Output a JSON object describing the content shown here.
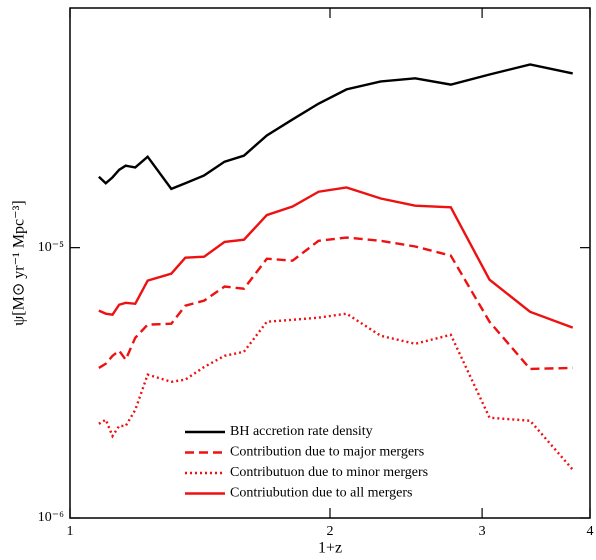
{
  "chart_data": {
    "type": "line",
    "xlabel": "1+z",
    "ylabel": "ψ[M⊙ yr⁻¹ Mpc⁻³]",
    "x": [
      1.08,
      1.1,
      1.12,
      1.14,
      1.16,
      1.19,
      1.23,
      1.31,
      1.36,
      1.43,
      1.51,
      1.59,
      1.69,
      1.81,
      1.94,
      2.09,
      2.29,
      2.51,
      2.76,
      3.06,
      3.41,
      3.82
    ],
    "series": [
      {
        "name": "BH accretion rate density",
        "color": "#000000",
        "dash": "solid",
        "values": [
          1.83e-05,
          1.73e-05,
          1.82e-05,
          1.94e-05,
          2.01e-05,
          1.98e-05,
          2.17e-05,
          1.65e-05,
          1.73e-05,
          1.85e-05,
          2.08e-05,
          2.19e-05,
          2.6e-05,
          2.98e-05,
          3.41e-05,
          3.85e-05,
          4.12e-05,
          4.23e-05,
          4.01e-05,
          4.37e-05,
          4.76e-05,
          4.41e-05
        ]
      },
      {
        "name": "Contribution due to major mergers",
        "color": "#ee1111",
        "dash": "dashed",
        "values": [
          3.59e-06,
          3.72e-06,
          3.98e-06,
          4.16e-06,
          3.85e-06,
          4.64e-06,
          5.19e-06,
          5.23e-06,
          6.1e-06,
          6.37e-06,
          7.18e-06,
          7.05e-06,
          9.1e-06,
          8.95e-06,
          1.06e-05,
          1.09e-05,
          1.06e-05,
          1.01e-05,
          9.34e-06,
          5.32e-06,
          3.56e-06,
          3.59e-06
        ]
      },
      {
        "name": "Contributuon due to minor mergers",
        "color": "#ee1111",
        "dash": "dotted",
        "values": [
          2.23e-06,
          2.31e-06,
          2.01e-06,
          2.19e-06,
          2.19e-06,
          2.51e-06,
          3.39e-06,
          3.19e-06,
          3.25e-06,
          3.62e-06,
          3.98e-06,
          4.12e-06,
          5.32e-06,
          5.41e-06,
          5.51e-06,
          5.7e-06,
          4.72e-06,
          4.41e-06,
          4.76e-06,
          2.35e-06,
          2.29e-06,
          1.51e-06
        ]
      },
      {
        "name": "Contriubution due to all mergers",
        "color": "#ee1111",
        "dash": "solid",
        "values": [
          5.85e-06,
          5.7e-06,
          5.65e-06,
          6.15e-06,
          6.25e-06,
          6.2e-06,
          7.55e-06,
          8.01e-06,
          9.18e-06,
          9.26e-06,
          1.05e-05,
          1.07e-05,
          1.32e-05,
          1.42e-05,
          1.61e-05,
          1.67e-05,
          1.52e-05,
          1.43e-05,
          1.41e-05,
          7.61e-06,
          5.79e-06,
          5.06e-06
        ]
      }
    ],
    "xlim": [
      1,
      4
    ],
    "xticks": [
      1,
      2,
      3,
      4
    ],
    "xscale": "log",
    "ylim": [
      1e-06,
      7.7e-05
    ],
    "yticks": [
      {
        "value": 1e-06,
        "label": "10⁻⁶"
      },
      {
        "value": 1e-05,
        "label": "10⁻⁵"
      }
    ],
    "yscale": "log",
    "grid": false,
    "legend": "lower center"
  }
}
